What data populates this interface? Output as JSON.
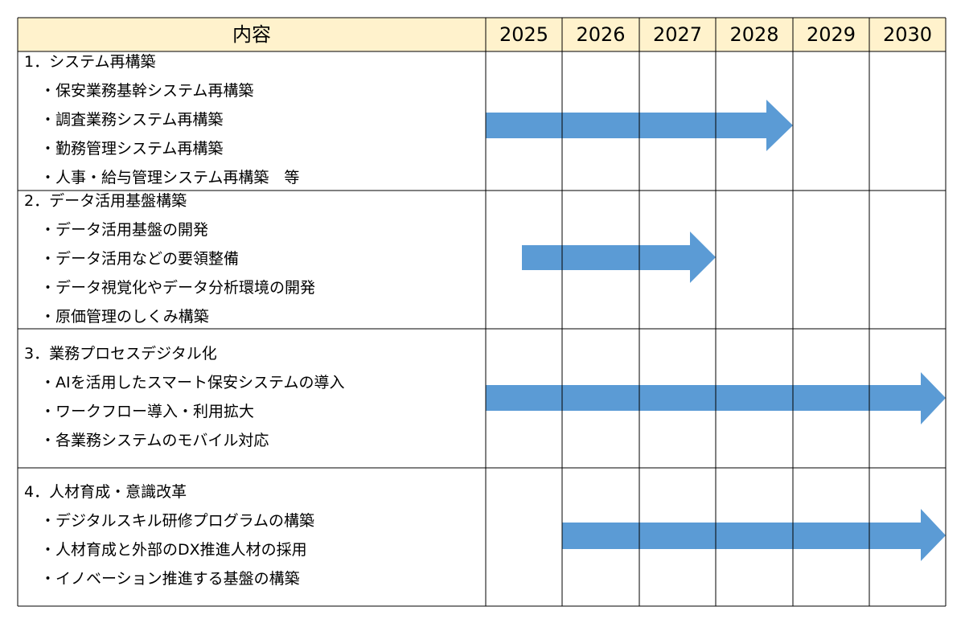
{
  "header": {
    "content": "内容",
    "years": [
      "2025",
      "2026",
      "2027",
      "2028",
      "2029",
      "2030"
    ]
  },
  "sections": [
    {
      "title": "1．システム再構築",
      "items": [
        "・保安業務基幹システム再構築",
        "・調査業務システム再構築",
        "・勤務管理システム再構築",
        "・人事・給与管理システム再構築　等"
      ]
    },
    {
      "title": "2．データ活用基盤構築",
      "items": [
        "・データ活用基盤の開発",
        "・データ活用などの要領整備",
        "・データ視覚化やデータ分析環境の開発",
        "・原価管理のしくみ構築"
      ]
    },
    {
      "title": "3．業務プロセスデジタル化",
      "items": [
        "・AIを活用したスマート保安システムの導入",
        "・ワークフロー導入・利用拡大",
        "・各業務システムのモバイル対応"
      ]
    },
    {
      "title": "4．人材育成・意識改革",
      "items": [
        "・デジタルスキル研修プログラムの構築",
        "・人材育成と外部のDX推進人材の採用",
        "・イノベーション推進する基盤の構築"
      ]
    }
  ]
}
